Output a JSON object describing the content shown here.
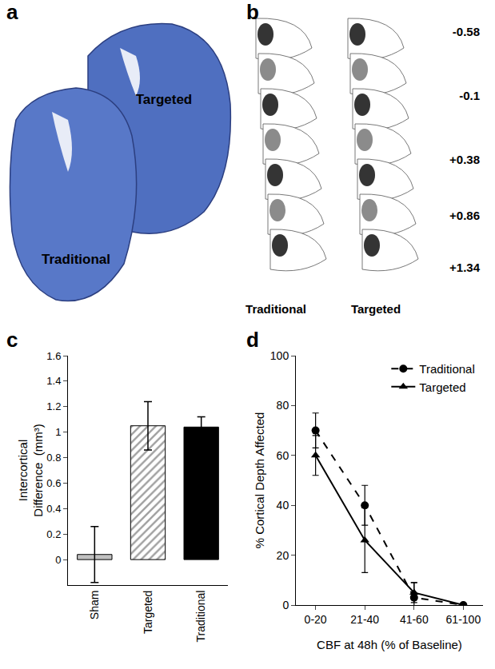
{
  "chart_data": [
    {
      "type": "bar",
      "panel_label": "c",
      "y_label": "Intercortical\nDifference  (mm³)",
      "categories": [
        "Sham",
        "Targeted",
        "Traditional"
      ],
      "values": [
        0.04,
        1.05,
        1.04
      ],
      "errors": [
        0.22,
        0.19,
        0.08
      ],
      "colors": [
        "#c0c0c0",
        "#ffffff",
        "#000000"
      ],
      "hatch": [
        false,
        true,
        false
      ],
      "ylim": [
        -0.2,
        1.6
      ],
      "yticks": [
        0,
        0.2,
        0.4,
        0.6,
        0.8,
        1,
        1.2,
        1.4,
        1.6
      ],
      "grid": false
    },
    {
      "type": "line",
      "panel_label": "d",
      "x_label": "CBF at 48h (% of Baseline)",
      "y_label": "% Cortical Depth Affected",
      "categories": [
        "0-20",
        "21-40",
        "41-60",
        "61-100"
      ],
      "series": [
        {
          "name": "Traditional",
          "color": "#000000",
          "marker": "circle",
          "line_style": "dashed",
          "values": [
            70,
            40,
            3,
            0
          ],
          "errors": [
            7,
            8,
            6,
            0
          ]
        },
        {
          "name": "Targeted",
          "color": "#000000",
          "marker": "triangle",
          "line_style": "solid",
          "values": [
            60,
            26,
            5,
            0
          ],
          "errors": [
            8,
            13,
            4,
            0
          ]
        }
      ],
      "ylim": [
        0,
        100
      ],
      "yticks": [
        0,
        20,
        40,
        60,
        80,
        100
      ],
      "legend": "top right",
      "grid": false
    }
  ],
  "panels": [
    {
      "panel_label": "a",
      "labels": [
        "Targeted",
        "Traditional"
      ]
    },
    {
      "panel_label": "b",
      "columns": [
        "Traditional",
        "Targeted"
      ],
      "coordinates": [
        "-0.58",
        "-0.1",
        "+0.38",
        "+0.86",
        "+1.34"
      ]
    }
  ]
}
